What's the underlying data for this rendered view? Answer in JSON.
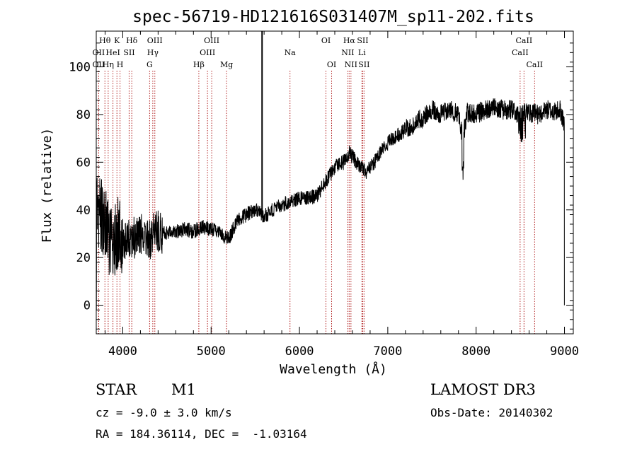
{
  "chart_data": {
    "type": "line",
    "title": "spec-56719-HD121616S031407M_sp11-202.fits",
    "xlabel": "Wavelength (Å)",
    "ylabel": "Flux (relative)",
    "xlim": [
      3700,
      9100
    ],
    "ylim": [
      -12,
      115
    ],
    "x_ticks": [
      4000,
      5000,
      6000,
      7000,
      8000,
      9000
    ],
    "y_ticks": [
      0,
      20,
      40,
      60,
      80,
      100
    ],
    "anchor_points": [
      [
        3700,
        40
      ],
      [
        3750,
        38
      ],
      [
        3800,
        35
      ],
      [
        3850,
        28
      ],
      [
        3900,
        27
      ],
      [
        3950,
        30
      ],
      [
        4000,
        26
      ],
      [
        4050,
        28
      ],
      [
        4100,
        27
      ],
      [
        4150,
        29
      ],
      [
        4200,
        30
      ],
      [
        4250,
        28
      ],
      [
        4300,
        27
      ],
      [
        4350,
        30
      ],
      [
        4400,
        31
      ],
      [
        4500,
        30
      ],
      [
        4600,
        31
      ],
      [
        4700,
        32
      ],
      [
        4800,
        31
      ],
      [
        4900,
        33
      ],
      [
        5000,
        32
      ],
      [
        5100,
        30
      ],
      [
        5200,
        28
      ],
      [
        5300,
        36
      ],
      [
        5400,
        38
      ],
      [
        5500,
        40
      ],
      [
        5600,
        37
      ],
      [
        5700,
        40
      ],
      [
        5800,
        42
      ],
      [
        5900,
        44
      ],
      [
        6000,
        45
      ],
      [
        6100,
        45
      ],
      [
        6200,
        46
      ],
      [
        6300,
        52
      ],
      [
        6400,
        58
      ],
      [
        6500,
        60
      ],
      [
        6560,
        64
      ],
      [
        6650,
        60
      ],
      [
        6750,
        56
      ],
      [
        6850,
        60
      ],
      [
        6950,
        66
      ],
      [
        7050,
        70
      ],
      [
        7150,
        72
      ],
      [
        7200,
        74
      ],
      [
        7300,
        76
      ],
      [
        7400,
        79
      ],
      [
        7500,
        82
      ],
      [
        7600,
        80
      ],
      [
        7700,
        82
      ],
      [
        7800,
        80
      ],
      [
        7850,
        70
      ],
      [
        7900,
        81
      ],
      [
        8000,
        80
      ],
      [
        8100,
        82
      ],
      [
        8200,
        83
      ],
      [
        8300,
        82
      ],
      [
        8400,
        82
      ],
      [
        8500,
        80
      ],
      [
        8600,
        81
      ],
      [
        8700,
        80
      ],
      [
        8800,
        82
      ],
      [
        8900,
        81
      ],
      [
        8950,
        82
      ],
      [
        9000,
        76
      ]
    ],
    "noise_seed": 56719,
    "spike": {
      "x": 5577,
      "y_top": 115,
      "y_bottom": 38
    },
    "line_markers": [
      {
        "label": "Hθ",
        "x": 3798,
        "row": 0
      },
      {
        "label": "OII",
        "x": 3727,
        "row": 1
      },
      {
        "label": "OII",
        "x": 3727,
        "row": 2
      },
      {
        "label": "Hη",
        "x": 3835,
        "row": 2
      },
      {
        "label": "HeI",
        "x": 3889,
        "row": 1
      },
      {
        "label": "K",
        "x": 3934,
        "row": 0
      },
      {
        "label": "H",
        "x": 3969,
        "row": 2
      },
      {
        "label": "SII",
        "x": 4072,
        "row": 1
      },
      {
        "label": "Hδ",
        "x": 4102,
        "row": 0
      },
      {
        "label": "G",
        "x": 4304,
        "row": 2
      },
      {
        "label": "Hγ",
        "x": 4340,
        "row": 1
      },
      {
        "label": "OIII",
        "x": 4363,
        "row": 0
      },
      {
        "label": "Hβ",
        "x": 4861,
        "row": 2
      },
      {
        "label": "OIII",
        "x": 4959,
        "row": 1
      },
      {
        "label": "OIII",
        "x": 5007,
        "row": 0
      },
      {
        "label": "Mg",
        "x": 5175,
        "row": 2
      },
      {
        "label": "Na",
        "x": 5893,
        "row": 1
      },
      {
        "label": "OI",
        "x": 6300,
        "row": 0
      },
      {
        "label": "OI",
        "x": 6364,
        "row": 2
      },
      {
        "label": "NII",
        "x": 6548,
        "row": 1
      },
      {
        "label": "Hα",
        "x": 6563,
        "row": 0
      },
      {
        "label": "NII",
        "x": 6583,
        "row": 2
      },
      {
        "label": "Li",
        "x": 6707,
        "row": 1
      },
      {
        "label": "SII",
        "x": 6716,
        "row": 0
      },
      {
        "label": "SII",
        "x": 6731,
        "row": 2
      },
      {
        "label": "CaII",
        "x": 8498,
        "row": 1
      },
      {
        "label": "CaII",
        "x": 8542,
        "row": 0
      },
      {
        "label": "CaII",
        "x": 8662,
        "row": 2
      }
    ]
  },
  "info": {
    "obj_class": "STAR",
    "subclass": "M1",
    "survey": "LAMOST DR3",
    "cz": "cz = -9.0 ± 3.0 km/s",
    "obs_date": "Obs-Date: 20140302",
    "coords": "RA = 184.36114, DEC =  -1.03164"
  },
  "colors": {
    "line": "#000000",
    "marker": "#b22222",
    "axis": "#000000"
  }
}
